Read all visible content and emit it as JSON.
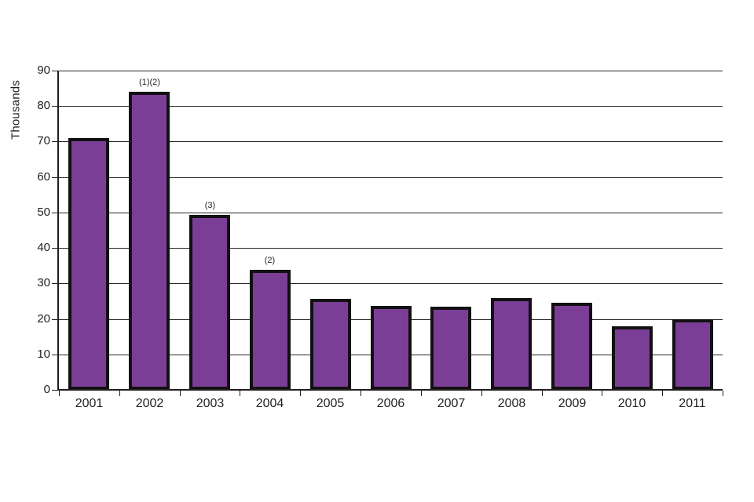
{
  "chart_data": {
    "type": "bar",
    "title": "",
    "xlabel": "",
    "ylabel": "Thousands",
    "categories": [
      "2001",
      "2002",
      "2003",
      "2004",
      "2005",
      "2006",
      "2007",
      "2008",
      "2009",
      "2010",
      "2011"
    ],
    "values": [
      71.0,
      84.1,
      49.4,
      33.9,
      25.7,
      23.6,
      23.4,
      25.9,
      24.5,
      17.9,
      19.9
    ],
    "annotations": [
      {
        "category": "2002",
        "text": "(1)(2)"
      },
      {
        "category": "2003",
        "text": "(3)"
      },
      {
        "category": "2004",
        "text": "(2)"
      }
    ],
    "ylim": [
      0,
      90
    ],
    "ytick_step": 10,
    "ytick_labels": [
      "0",
      "10",
      "20",
      "30",
      "40",
      "50",
      "60",
      "70",
      "80",
      "90"
    ],
    "grid": true,
    "legend_position": "none",
    "colors": {
      "bar_fill": "#7B3E97",
      "bar_border": "#121011",
      "axis": "#231F20",
      "gridline": "#2B2726",
      "text": "#231F20",
      "background": "#FFFFFF"
    }
  }
}
